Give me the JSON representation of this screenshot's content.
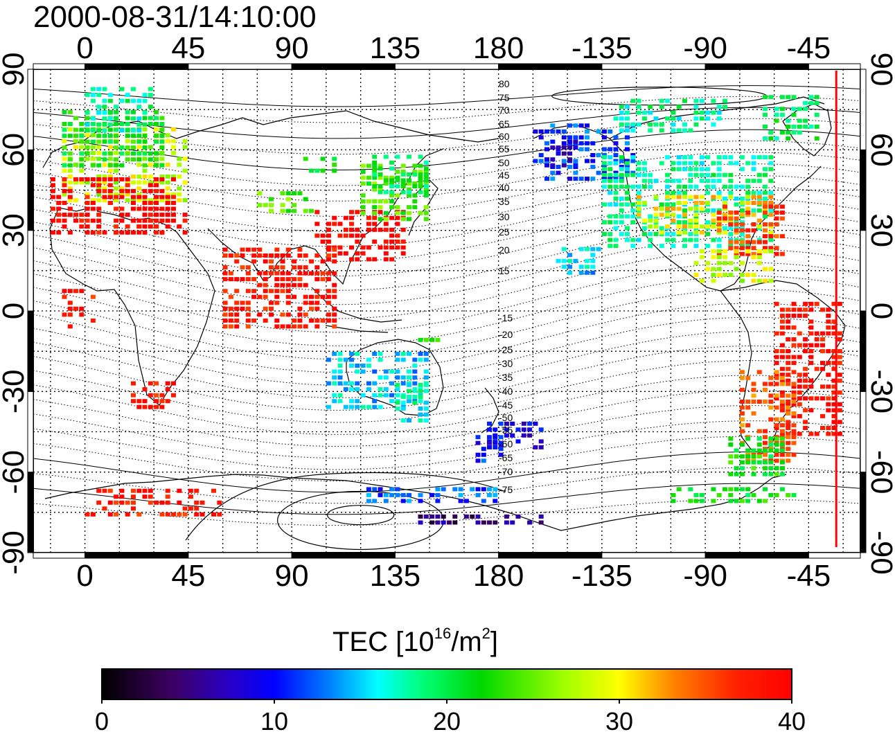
{
  "title": "2000-08-31/14:10:00",
  "map": {
    "x_ticks": [
      "0",
      "45",
      "90",
      "135",
      "180",
      "-135",
      "-90",
      "-45"
    ],
    "x_tick_values": [
      0,
      45,
      90,
      135,
      180,
      225,
      270,
      315
    ],
    "y_ticks": [
      "90",
      "60",
      "30",
      "0",
      "-30",
      "-60",
      "-90"
    ],
    "y_tick_values": [
      90,
      60,
      30,
      0,
      -30,
      -60,
      -90
    ],
    "lon_range": [
      -22.5,
      337.5
    ],
    "lat_range": [
      -90,
      90
    ],
    "grid": "dotted, every 15 degrees",
    "terminator_longitude": 327,
    "terminator_color": "#ff0000",
    "magnetic_contour_labels": [
      "80",
      "75",
      "70",
      "65",
      "60",
      "55",
      "50",
      "45",
      "40",
      "35",
      "30",
      "25",
      "20",
      "15",
      "-15",
      "-20",
      "-25",
      "-30",
      "-35",
      "-40",
      "-45",
      "-50",
      "-55",
      "-60",
      "-65",
      "-70",
      "-75"
    ]
  },
  "colorbar": {
    "title_prefix": "TEC  [10",
    "title_exp1": "16",
    "title_mid": "/m",
    "title_exp2": "2",
    "title_suffix": "]",
    "ticks": [
      "0",
      "10",
      "20",
      "30",
      "40"
    ],
    "range": [
      0,
      40
    ],
    "colors": [
      "#000000",
      "#3c0060",
      "#2a00c0",
      "#0000ff",
      "#0080ff",
      "#00ffff",
      "#00ff80",
      "#00d800",
      "#a0ff00",
      "#ffff00",
      "#ff8000",
      "#ff2000",
      "#ff0000"
    ]
  }
}
